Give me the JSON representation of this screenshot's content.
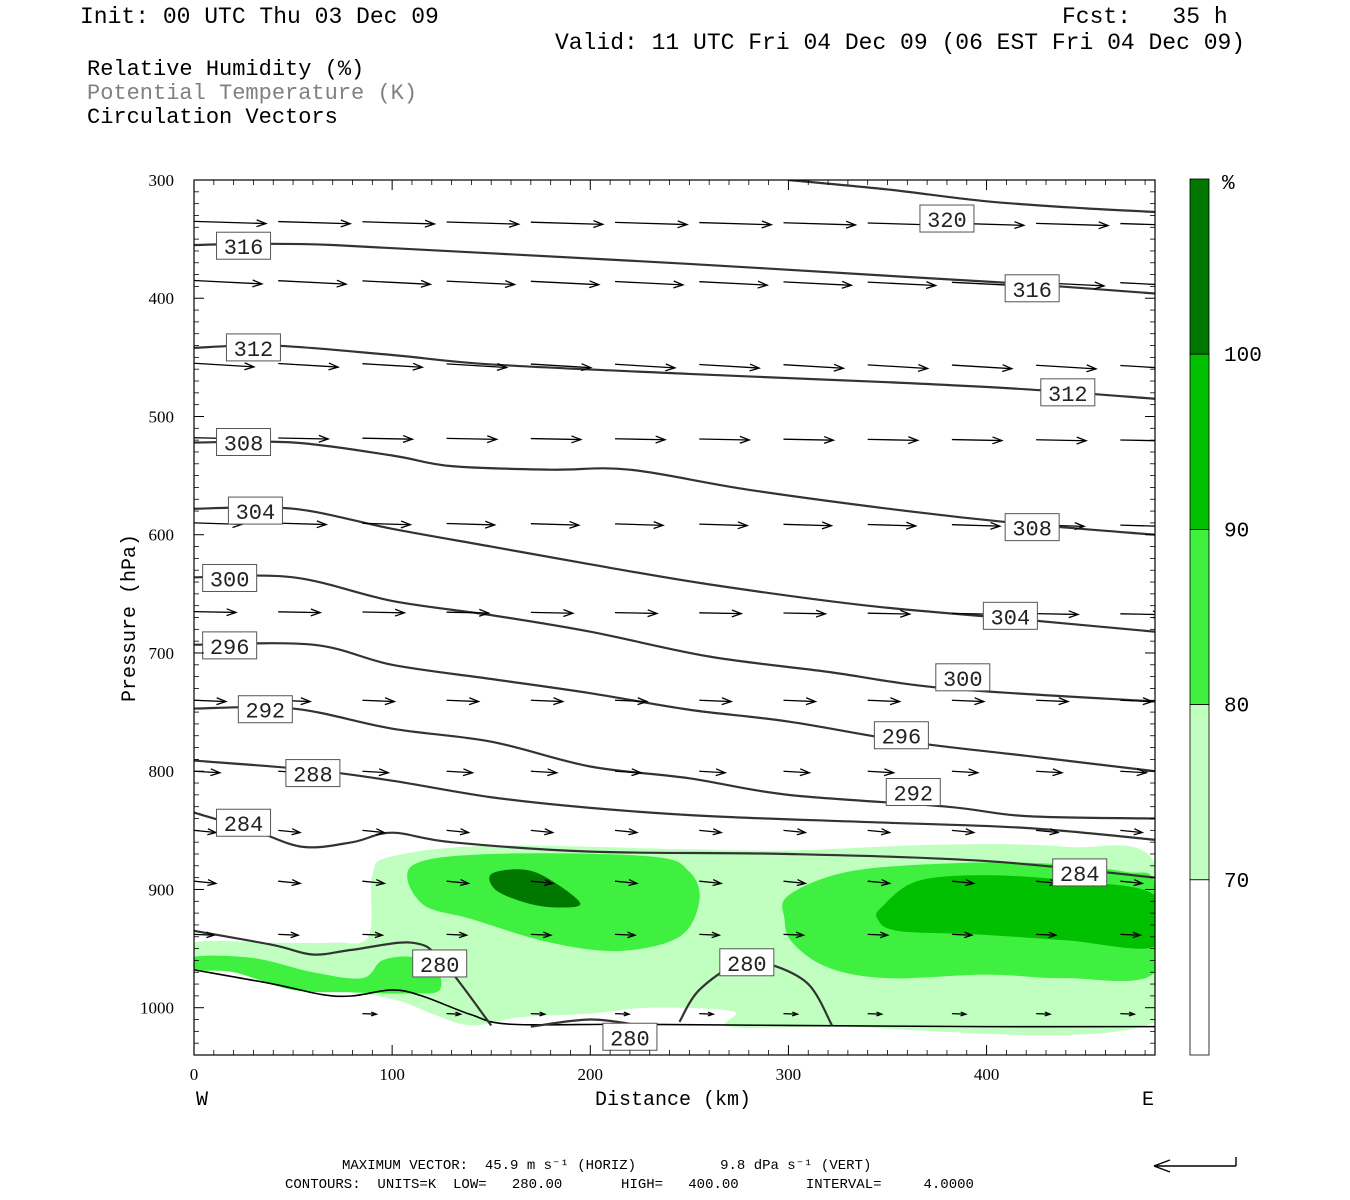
{
  "header": {
    "init": "Init: 00 UTC Thu 03 Dec 09",
    "fcst": "Fcst:   35 h",
    "valid": "Valid: 11 UTC Fri 04 Dec 09 (06 EST Fri 04 Dec 09)"
  },
  "legend": {
    "rh": "Relative Humidity (%)",
    "theta": "Potential Temperature (K)",
    "vectors": "Circulation Vectors"
  },
  "footer": {
    "max_vector": "MAXIMUM VECTOR:  45.9 m s⁻¹ (HORIZ)          9.8 dPa s⁻¹ (VERT)",
    "contours": "CONTOURS:  UNITS=K  LOW=   280.00       HIGH=   400.00        INTERVAL=     4.0000"
  },
  "colors": {
    "rh_70_80": "#c0ffc0",
    "rh_80_90": "#40f040",
    "rh_90_100": "#00c000",
    "rh_100": "#007800",
    "contour": "#333333"
  },
  "chart_data": {
    "type": "contour",
    "xlabel": "Distance (km)",
    "ylabel": "Pressure (hPa)",
    "x_ticks": [
      0,
      100,
      200,
      300,
      400
    ],
    "y_ticks": [
      300,
      400,
      500,
      600,
      700,
      800,
      900,
      1000
    ],
    "xlim": [
      0,
      485
    ],
    "ylim": [
      1040,
      300
    ],
    "x_end_labels": {
      "left": "W",
      "right": "E"
    },
    "colorbar": {
      "unit": "%",
      "levels": [
        "70",
        "80",
        "90",
        "100"
      ],
      "colors": [
        "#ffffff",
        "#c0ffc0",
        "#40f040",
        "#00c000",
        "#007800"
      ]
    },
    "isentropes": [
      {
        "level": 320,
        "label": "320",
        "points": [
          [
            300,
            300
          ],
          [
            350,
            308
          ],
          [
            400,
            318
          ],
          [
            450,
            324
          ],
          [
            485,
            327
          ]
        ],
        "label_at": [
          380,
          333
        ]
      },
      {
        "level": 316,
        "label": "316",
        "points": [
          [
            0,
            355
          ],
          [
            30,
            354
          ],
          [
            70,
            355
          ],
          [
            150,
            362
          ],
          [
            250,
            371
          ],
          [
            350,
            381
          ],
          [
            420,
            388
          ],
          [
            485,
            396
          ]
        ],
        "label_at": [
          25,
          356
        ]
      },
      {
        "level": 316,
        "label": "316",
        "points": [],
        "label_at": [
          423,
          392
        ]
      },
      {
        "level": 312,
        "label": "312",
        "points": [
          [
            0,
            442
          ],
          [
            40,
            440
          ],
          [
            100,
            448
          ],
          [
            150,
            456
          ],
          [
            250,
            464
          ],
          [
            350,
            471
          ],
          [
            420,
            477
          ],
          [
            485,
            485
          ]
        ],
        "label_at": [
          30,
          442
        ]
      },
      {
        "level": 312,
        "label": "312",
        "points": [],
        "label_at": [
          441,
          480
        ]
      },
      {
        "level": 308,
        "label": "308",
        "points": [
          [
            0,
            522
          ],
          [
            50,
            522
          ],
          [
            100,
            533
          ],
          [
            130,
            542
          ],
          [
            180,
            545
          ],
          [
            220,
            545
          ],
          [
            280,
            562
          ],
          [
            360,
            580
          ],
          [
            420,
            591
          ],
          [
            485,
            600
          ]
        ],
        "label_at": [
          25,
          522
        ]
      },
      {
        "level": 308,
        "label": "308",
        "points": [],
        "label_at": [
          423,
          594
        ]
      },
      {
        "level": 304,
        "label": "304",
        "points": [
          [
            0,
            578
          ],
          [
            50,
            578
          ],
          [
            100,
            595
          ],
          [
            150,
            610
          ],
          [
            200,
            625
          ],
          [
            260,
            642
          ],
          [
            340,
            660
          ],
          [
            420,
            672
          ],
          [
            485,
            682
          ]
        ],
        "label_at": [
          31,
          580
        ]
      },
      {
        "level": 304,
        "label": "304",
        "points": [],
        "label_at": [
          412,
          669
        ]
      },
      {
        "level": 300,
        "label": "300",
        "points": [
          [
            0,
            636
          ],
          [
            50,
            636
          ],
          [
            100,
            656
          ],
          [
            150,
            668
          ],
          [
            200,
            682
          ],
          [
            260,
            703
          ],
          [
            320,
            716
          ],
          [
            380,
            730
          ],
          [
            485,
            741
          ]
        ],
        "label_at": [
          18,
          637
        ]
      },
      {
        "level": 300,
        "label": "300",
        "points": [],
        "label_at": [
          388,
          721
        ]
      },
      {
        "level": 296,
        "label": "296",
        "points": [
          [
            0,
            693
          ],
          [
            60,
            693
          ],
          [
            100,
            710
          ],
          [
            150,
            722
          ],
          [
            200,
            734
          ],
          [
            250,
            748
          ],
          [
            300,
            758
          ],
          [
            360,
            775
          ],
          [
            420,
            787
          ],
          [
            485,
            800
          ]
        ],
        "label_at": [
          18,
          694
        ]
      },
      {
        "level": 296,
        "label": "296",
        "points": [],
        "label_at": [
          357,
          770
        ]
      },
      {
        "level": 292,
        "label": "292",
        "points": [
          [
            0,
            747
          ],
          [
            50,
            747
          ],
          [
            100,
            764
          ],
          [
            150,
            775
          ],
          [
            200,
            796
          ],
          [
            250,
            806
          ],
          [
            300,
            820
          ],
          [
            380,
            830
          ],
          [
            420,
            838
          ],
          [
            485,
            840
          ]
        ],
        "label_at": [
          36,
          748
        ]
      },
      {
        "level": 292,
        "label": "292",
        "points": [],
        "label_at": [
          363,
          818
        ]
      },
      {
        "level": 288,
        "label": "288",
        "points": [
          [
            0,
            791
          ],
          [
            60,
            799
          ],
          [
            100,
            808
          ],
          [
            150,
            822
          ],
          [
            200,
            831
          ],
          [
            260,
            838
          ],
          [
            340,
            843
          ],
          [
            420,
            848
          ],
          [
            485,
            858
          ]
        ],
        "label_at": [
          60,
          802
        ]
      },
      {
        "level": 284,
        "label": "284",
        "points": [
          [
            0,
            835
          ],
          [
            30,
            850
          ],
          [
            55,
            864
          ],
          [
            80,
            860
          ],
          [
            100,
            852
          ],
          [
            130,
            860
          ],
          [
            200,
            868
          ],
          [
            300,
            870
          ],
          [
            400,
            876
          ],
          [
            485,
            890
          ]
        ],
        "label_at": [
          25,
          844
        ]
      },
      {
        "level": 284,
        "label": "284",
        "points": [],
        "label_at": [
          447,
          886
        ]
      },
      {
        "level": 280,
        "label": "280",
        "points": [
          [
            0,
            935
          ],
          [
            40,
            947
          ],
          [
            60,
            955
          ],
          [
            80,
            951
          ],
          [
            110,
            945
          ],
          [
            125,
            960
          ],
          [
            150,
            1015
          ]
        ],
        "label_at": [
          124,
          963
        ]
      },
      {
        "level": 280,
        "label": "280",
        "points": [
          [
            170,
            1016
          ],
          [
            200,
            1010
          ],
          [
            225,
            1015
          ]
        ],
        "label_at": [
          220,
          1025
        ]
      },
      {
        "level": 280,
        "label": "280",
        "points": [
          [
            245,
            1012
          ],
          [
            255,
            985
          ],
          [
            275,
            962
          ],
          [
            290,
            963
          ],
          [
            310,
            980
          ],
          [
            322,
            1015
          ]
        ],
        "label_at": [
          279,
          962
        ]
      }
    ],
    "max_vector": {
      "horizontal_m_s": 45.9,
      "vertical_dPa_s": 9.8
    },
    "contour_info": {
      "units": "K",
      "low": 280.0,
      "high": 400.0,
      "interval": 4.0
    }
  }
}
